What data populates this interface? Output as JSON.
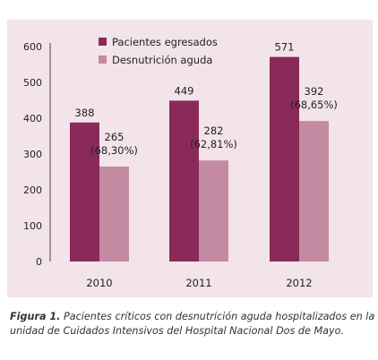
{
  "chart_data": {
    "type": "bar",
    "title": "",
    "xlabel": "",
    "ylabel": "",
    "categories": [
      "2010",
      "2011",
      "2012"
    ],
    "ylim": [
      0,
      600
    ],
    "yticks": [
      0,
      100,
      200,
      300,
      400,
      500,
      600
    ],
    "grid": false,
    "legend_position": "top-left",
    "series": [
      {
        "name": "Pacientes egresados",
        "values": [
          388,
          449,
          571
        ],
        "labels": [
          "388",
          "449",
          "571"
        ],
        "color": "#8a2a59"
      },
      {
        "name": "Desnutrición aguda",
        "values": [
          265,
          282,
          392
        ],
        "labels": [
          "265",
          "282",
          "392"
        ],
        "percent_labels": [
          "(68,30%)",
          "(62,81%)",
          "(68,65%)"
        ],
        "color": "#c38aa2"
      }
    ]
  },
  "caption": {
    "label": "Figura 1.",
    "text": " Pacientes críticos con desnutrición aguda hospitalizados en la unidad de Cuidados Intensivos del Hospital Nacional Dos de Mayo."
  },
  "colors": {
    "panel_background": "#f3e4ea",
    "axis": "#444444",
    "text": "#222222"
  }
}
